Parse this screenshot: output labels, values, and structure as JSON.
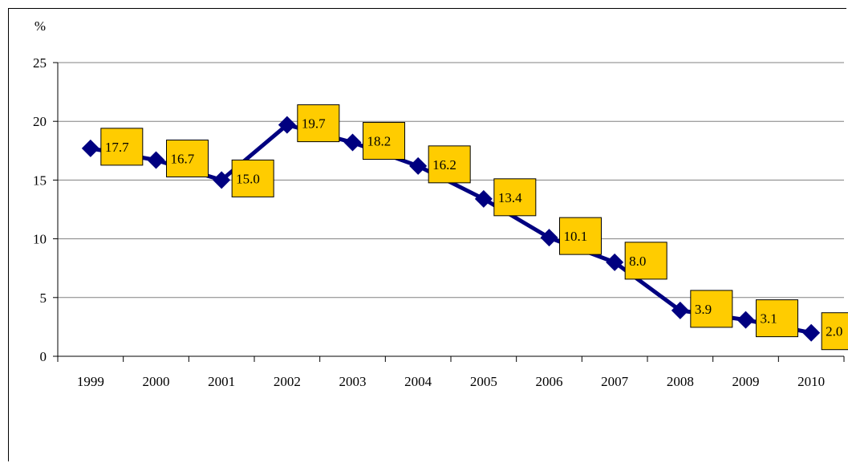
{
  "chart_data": {
    "type": "line",
    "title": "",
    "xlabel": "",
    "ylabel": "%",
    "categories": [
      "1999",
      "2000",
      "2001",
      "2002",
      "2003",
      "2004",
      "2005",
      "2006",
      "2007",
      "2008",
      "2009",
      "2010"
    ],
    "series": [
      {
        "values": [
          17.7,
          16.7,
          15.0,
          19.7,
          18.2,
          16.2,
          13.4,
          10.1,
          8.0,
          3.9,
          3.1,
          2.0
        ],
        "labels": [
          "17.7",
          "16.7",
          "15.0",
          "19.7",
          "18.2",
          "16.2",
          "13.4",
          "10.1",
          "8.0",
          "3.9",
          "3.1",
          "2.0"
        ],
        "color": "#000080",
        "marker": "diamond"
      }
    ],
    "ylim": [
      0,
      25
    ],
    "yticks": [
      "0",
      "5",
      "10",
      "15",
      "20",
      "25"
    ],
    "grid": true,
    "legend": "none",
    "label_box_color": "#FFCC00"
  }
}
